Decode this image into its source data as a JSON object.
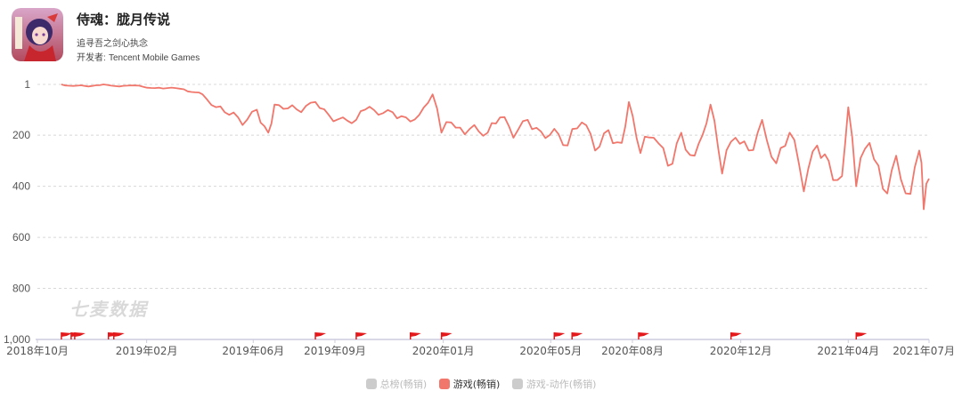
{
  "app": {
    "title": "侍魂：胧月传说",
    "subtitle": "追寻吾之剑心执念",
    "developer_label": "开发者:",
    "developer_name": "Tencent Mobile Games",
    "icon": "app-icon"
  },
  "watermark": "七麦数据",
  "colors": {
    "series": "#f1766b",
    "grid": "#d8d8d8",
    "axis": "#ccccdd",
    "inactive": "#cccccc",
    "flag": "#e4191c"
  },
  "legend": [
    {
      "label": "总榜(畅销)",
      "active": false
    },
    {
      "label": "游戏(畅销)",
      "active": true
    },
    {
      "label": "游戏-动作(畅销)",
      "active": false
    }
  ],
  "chart_data": {
    "type": "line",
    "y_axis_inverted": true,
    "ylim": [
      1,
      1000
    ],
    "y_ticks": [
      "1",
      "200",
      "400",
      "600",
      "800",
      "1,000"
    ],
    "x_ticks": [
      "2018年10月",
      "2019年02月",
      "2019年06月",
      "2019年09月",
      "2020年01月",
      "2020年05月",
      "2020年08月",
      "2020年12月",
      "2021年04月",
      "2021年07月"
    ],
    "xlim": [
      "2018-10-01",
      "2021-07-01"
    ],
    "grid": true,
    "legend_position": "bottom",
    "series": [
      {
        "name": "游戏(畅销)",
        "x": [
          "2018-10-28",
          "2018-11-15",
          "2018-12-10",
          "2019-01-10",
          "2019-02-15",
          "2019-03-15",
          "2019-04-05",
          "2019-04-20",
          "2019-05-05",
          "2019-05-20",
          "2019-06-05",
          "2019-06-18",
          "2019-06-25",
          "2019-07-10",
          "2019-07-25",
          "2019-08-10",
          "2019-08-25",
          "2019-09-10",
          "2019-09-25",
          "2019-10-05",
          "2019-10-20",
          "2019-11-05",
          "2019-11-20",
          "2019-12-05",
          "2019-12-20",
          "2019-12-30",
          "2020-01-10",
          "2020-01-20",
          "2020-02-05",
          "2020-02-20",
          "2020-03-05",
          "2020-03-20",
          "2020-04-05",
          "2020-04-20",
          "2020-05-05",
          "2020-05-20",
          "2020-06-05",
          "2020-06-20",
          "2020-07-05",
          "2020-07-20",
          "2020-07-28",
          "2020-08-10",
          "2020-08-25",
          "2020-09-10",
          "2020-09-25",
          "2020-10-10",
          "2020-10-28",
          "2020-11-10",
          "2020-11-25",
          "2020-12-10",
          "2020-12-25",
          "2021-01-10",
          "2021-01-25",
          "2021-02-10",
          "2021-02-25",
          "2021-03-10",
          "2021-03-25",
          "2021-04-01",
          "2021-04-10",
          "2021-04-25",
          "2021-05-10",
          "2021-05-25",
          "2021-06-10",
          "2021-06-20",
          "2021-06-25",
          "2021-07-01"
        ],
        "values": [
          1,
          6,
          4,
          6,
          14,
          20,
          40,
          90,
          120,
          160,
          100,
          190,
          80,
          95,
          110,
          70,
          120,
          130,
          140,
          100,
          120,
          110,
          130,
          120,
          40,
          190,
          150,
          170,
          160,
          190,
          130,
          210,
          140,
          185,
          175,
          240,
          150,
          260,
          180,
          230,
          70,
          270,
          210,
          320,
          190,
          280,
          80,
          350,
          210,
          260,
          140,
          310,
          190,
          420,
          240,
          300,
          360,
          90,
          400,
          230,
          410,
          280,
          430,
          260,
          490,
          370
        ]
      }
    ],
    "event_flags": [
      "2018-10-28",
      "2018-11-08",
      "2018-11-12",
      "2018-12-20",
      "2018-12-26",
      "2019-08-10",
      "2019-09-25",
      "2019-11-25",
      "2019-12-30",
      "2020-05-05",
      "2020-05-25",
      "2020-08-08",
      "2020-11-20",
      "2021-04-10"
    ]
  }
}
